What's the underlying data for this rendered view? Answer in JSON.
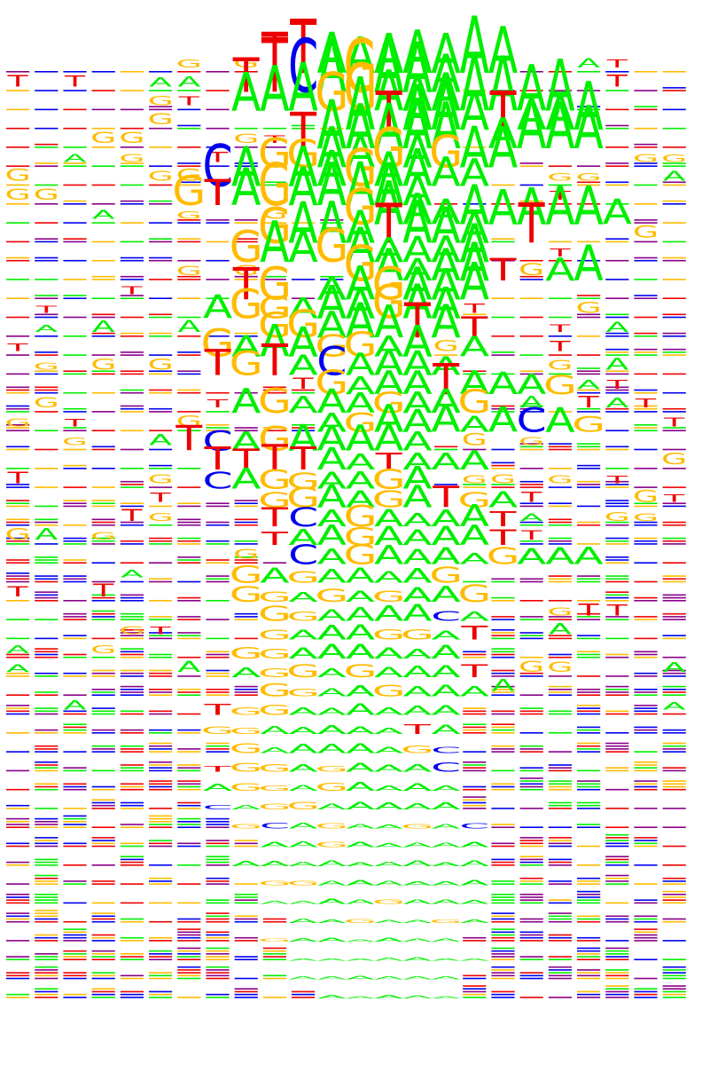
{
  "figure": {
    "alphabet": [
      "A",
      "C",
      "G",
      "T"
    ],
    "positions_per_row": 24
  },
  "colors": {
    "A": "#00ee00",
    "C": "#0000ee",
    "G": "#ffbb00",
    "T": "#ee0000",
    "background_stack": [
      "#00ee00",
      "#ffbb00",
      "#ee0000",
      "#0000ee",
      "#880088"
    ]
  },
  "rows": [
    {
      "core": "TTAAAAAAA",
      "start": 9
    },
    {
      "core": "TTCAGAAA",
      "start": 8
    },
    {
      "core": "AAAGGAAAAAAA",
      "start": 8
    },
    {
      "core": "ATAAATAAA",
      "start": 12
    },
    {
      "core": "TAAAAA.AAAA",
      "start": 10
    },
    {
      "core": "GGAAGAGAA",
      "start": 9
    },
    {
      "core": "CA.AAGAAAA",
      "start": 7
    },
    {
      "core": "GTAGAAAAA",
      "start": 6
    },
    {
      "core": "GAAAAAAAAA",
      "start": 12
    },
    {
      "core": "GAAATAAA.T",
      "start": 9
    },
    {
      "core": "GAAGAAAAA",
      "start": 8
    },
    {
      "core": "GAAAAT.AA",
      "start": 12
    },
    {
      "core": "TG.AAGAAA",
      "start": 8
    },
    {
      "core": "AGGAAAGAA",
      "start": 7
    },
    {
      "core": "GGAAATAT",
      "start": 9
    },
    {
      "core": "GAAAGGAA.A",
      "start": 7
    },
    {
      "core": "TGTACAAAA",
      "start": 7
    },
    {
      "core": "GAAATAAAG",
      "start": 11
    },
    {
      "core": "AGAAAGAAG",
      "start": 8
    },
    {
      "core": "AGAAAAACAG",
      "start": 11
    },
    {
      "core": "TCAGAAAAA",
      "start": 6
    },
    {
      "core": "TTTTAATAAA",
      "start": 7
    },
    {
      "core": "CAGGAAGA",
      "start": 7
    },
    {
      "core": "GGAAGATGA",
      "start": 9
    },
    {
      "core": "TCAGAAAAT",
      "start": 9
    },
    {
      "core": "TAAGAAAAT",
      "start": 9
    },
    {
      "core": "CAGAAAAGAAA",
      "start": 10
    },
    {
      "core": "GAGAAAAG",
      "start": 8
    },
    {
      "core": "GGAGAGAAG",
      "start": 8
    },
    {
      "core": "GGAAAACA",
      "start": 9
    },
    {
      "core": "GAAAGGAT",
      "start": 9
    },
    {
      "core": "GGAAAAAA",
      "start": 8
    },
    {
      "core": "AGGAGAAAT",
      "start": 8
    },
    {
      "core": "GGAAGAAA",
      "start": 9
    },
    {
      "core": "TGGAAAAAA",
      "start": 7
    },
    {
      "core": "GGAAAAATA",
      "start": 7
    },
    {
      "core": "GAAAAAGC",
      "start": 8
    },
    {
      "core": "TGGAGAAAC",
      "start": 7
    },
    {
      "core": "AGGAGAAAA",
      "start": 7
    },
    {
      "core": "CAGGAAAAA",
      "start": 7
    },
    {
      "core": "GCAGAAGAC",
      "start": 8
    },
    {
      "core": "AAGAAAAA",
      "start": 9
    },
    {
      "core": "AAAAAAAAA",
      "start": 8
    },
    {
      "core": "GGAAAAAA",
      "start": 9
    },
    {
      "core": "AAAAGAAA",
      "start": 9
    },
    {
      "core": "AAGAAGA",
      "start": 10
    },
    {
      "core": "GAAAAAA",
      "start": 9
    },
    {
      "core": "AAAAAAA",
      "start": 10
    },
    {
      "core": "AAAAAA",
      "start": 10
    },
    {
      "core": "AAAAA",
      "start": 11
    }
  ]
}
